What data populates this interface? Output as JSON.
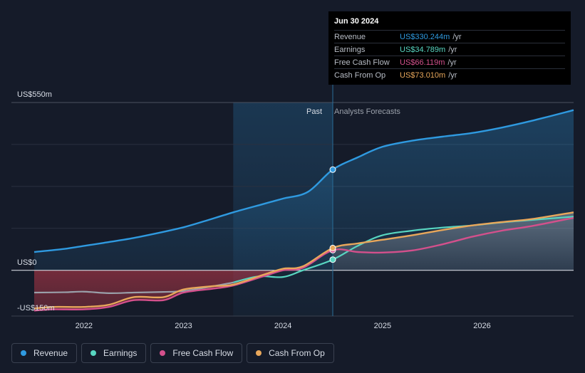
{
  "tooltip": {
    "date": "Jun 30 2024",
    "rows": [
      {
        "label": "Revenue",
        "value": "US$330.244m",
        "unit": "/yr",
        "color": "#2f9ae0"
      },
      {
        "label": "Earnings",
        "value": "US$34.789m",
        "unit": "/yr",
        "color": "#58d6c1"
      },
      {
        "label": "Free Cash Flow",
        "value": "US$66.119m",
        "unit": "/yr",
        "color": "#d4508c"
      },
      {
        "label": "Cash From Op",
        "value": "US$73.010m",
        "unit": "/yr",
        "color": "#e8a75b"
      }
    ]
  },
  "legend": [
    {
      "label": "Revenue",
      "color": "#2f9ae0"
    },
    {
      "label": "Earnings",
      "color": "#58d6c1"
    },
    {
      "label": "Free Cash Flow",
      "color": "#d4508c"
    },
    {
      "label": "Cash From Op",
      "color": "#e8a75b"
    }
  ],
  "chart_data": {
    "type": "line",
    "title": "",
    "y_labels": {
      "top": "US$550m",
      "zero": "US$0",
      "bottom": "-US$150m"
    },
    "ylim": [
      -150,
      550
    ],
    "xlim": [
      2021.5,
      2026.92
    ],
    "x_ticks": [
      2022,
      2023,
      2024,
      2025,
      2026
    ],
    "x_tick_labels": [
      "2022",
      "2023",
      "2024",
      "2025",
      "2026"
    ],
    "past_label": "Past",
    "forecast_label": "Analysts Forecasts",
    "past_start": 2023.5,
    "present": 2024.5,
    "series": [
      {
        "name": "Revenue",
        "color": "#2f9ae0",
        "points": [
          [
            2021.5,
            60
          ],
          [
            2021.8,
            70
          ],
          [
            2022.0,
            80
          ],
          [
            2022.2,
            90
          ],
          [
            2022.5,
            106
          ],
          [
            2022.8,
            126
          ],
          [
            2023.0,
            141
          ],
          [
            2023.2,
            160
          ],
          [
            2023.5,
            190
          ],
          [
            2023.8,
            217
          ],
          [
            2024.0,
            235
          ],
          [
            2024.25,
            257
          ],
          [
            2024.5,
            330
          ],
          [
            2024.75,
            370
          ],
          [
            2025.0,
            405
          ],
          [
            2025.3,
            425
          ],
          [
            2025.6,
            438
          ],
          [
            2025.9,
            450
          ],
          [
            2026.2,
            468
          ],
          [
            2026.5,
            490
          ],
          [
            2026.92,
            525
          ]
        ]
      },
      {
        "name": "Earnings",
        "color": "#58d6c1",
        "points": [
          [
            2021.5,
            -73
          ],
          [
            2021.8,
            -72
          ],
          [
            2022.0,
            -70
          ],
          [
            2022.25,
            -75
          ],
          [
            2022.5,
            -73
          ],
          [
            2022.8,
            -71
          ],
          [
            2023.0,
            -68
          ],
          [
            2023.25,
            -55
          ],
          [
            2023.5,
            -40
          ],
          [
            2023.75,
            -20
          ],
          [
            2024.0,
            -22
          ],
          [
            2024.2,
            0
          ],
          [
            2024.5,
            35
          ],
          [
            2024.75,
            80
          ],
          [
            2025.0,
            115
          ],
          [
            2025.3,
            130
          ],
          [
            2025.6,
            140
          ],
          [
            2025.9,
            147
          ],
          [
            2026.2,
            157
          ],
          [
            2026.5,
            165
          ],
          [
            2026.92,
            176
          ]
        ]
      },
      {
        "name": "Free Cash Flow",
        "color": "#d4508c",
        "points": [
          [
            2021.5,
            -132
          ],
          [
            2021.7,
            -128
          ],
          [
            2022.0,
            -128
          ],
          [
            2022.25,
            -120
          ],
          [
            2022.5,
            -98
          ],
          [
            2022.8,
            -98
          ],
          [
            2023.0,
            -73
          ],
          [
            2023.3,
            -60
          ],
          [
            2023.5,
            -50
          ],
          [
            2023.8,
            -20
          ],
          [
            2024.0,
            0
          ],
          [
            2024.2,
            8
          ],
          [
            2024.5,
            66
          ],
          [
            2024.75,
            60
          ],
          [
            2025.0,
            58
          ],
          [
            2025.3,
            65
          ],
          [
            2025.6,
            85
          ],
          [
            2025.9,
            110
          ],
          [
            2026.2,
            130
          ],
          [
            2026.5,
            145
          ],
          [
            2026.92,
            172
          ]
        ]
      },
      {
        "name": "Cash From Op",
        "color": "#e8a75b",
        "points": [
          [
            2021.5,
            -125
          ],
          [
            2021.7,
            -120
          ],
          [
            2022.0,
            -120
          ],
          [
            2022.25,
            -113
          ],
          [
            2022.5,
            -88
          ],
          [
            2022.8,
            -88
          ],
          [
            2023.0,
            -63
          ],
          [
            2023.3,
            -52
          ],
          [
            2023.5,
            -47
          ],
          [
            2023.8,
            -15
          ],
          [
            2024.0,
            5
          ],
          [
            2024.2,
            13
          ],
          [
            2024.5,
            73
          ],
          [
            2024.75,
            88
          ],
          [
            2025.0,
            100
          ],
          [
            2025.3,
            115
          ],
          [
            2025.6,
            132
          ],
          [
            2025.9,
            147
          ],
          [
            2026.2,
            158
          ],
          [
            2026.5,
            168
          ],
          [
            2026.92,
            190
          ]
        ]
      }
    ]
  }
}
